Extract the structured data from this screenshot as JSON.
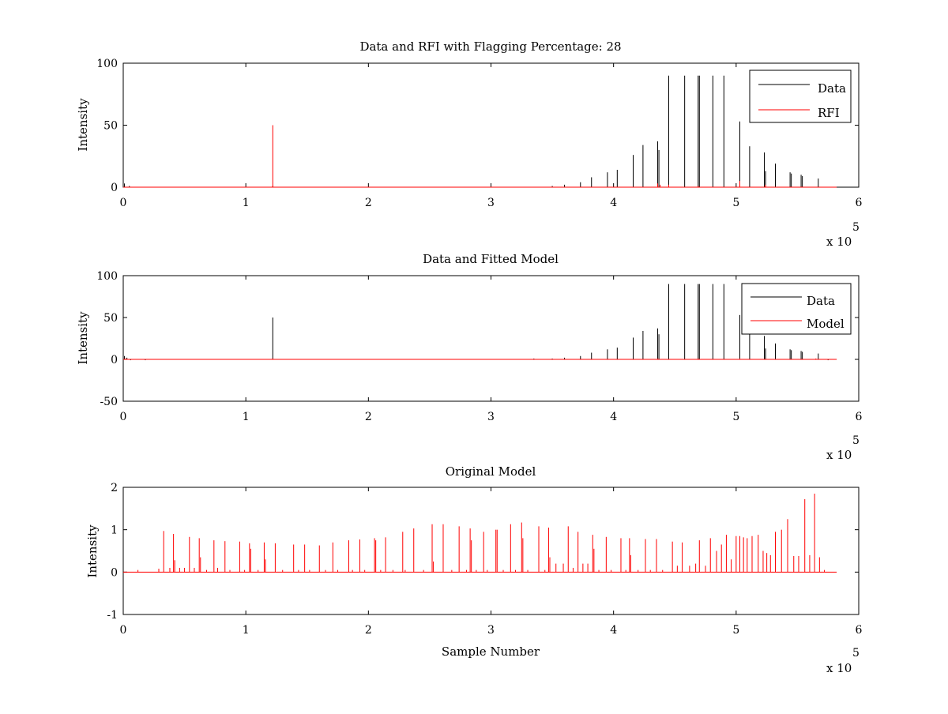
{
  "figure": {
    "background": "#ffffff",
    "colors": {
      "data": "#000000",
      "rfi": "#ff0000",
      "model": "#ff0000",
      "axes": "#000000"
    }
  },
  "chart_data": [
    {
      "type": "line",
      "title": "Data and RFI with Flagging Percentage: 28",
      "xlabel": "",
      "ylabel": "Intensity",
      "xlim": [
        0,
        6
      ],
      "ylim": [
        0,
        100
      ],
      "xticks": [
        "0",
        "1",
        "2",
        "3",
        "4",
        "5",
        "6"
      ],
      "yticks": [
        "0",
        "50",
        "100"
      ],
      "x_multiplier_label": "x 10",
      "x_multiplier_exponent": "5",
      "grid": false,
      "legend_position": "top-right",
      "series": [
        {
          "name": "Data",
          "color": "#000000",
          "baseline": 0,
          "spikes": [
            [
              0.01,
              3
            ],
            [
              0.05,
              1
            ],
            [
              1.22,
              1
            ],
            [
              3.5,
              1
            ],
            [
              3.6,
              2
            ],
            [
              3.73,
              4
            ],
            [
              3.82,
              8
            ],
            [
              3.95,
              12
            ],
            [
              4.03,
              14
            ],
            [
              4.16,
              26
            ],
            [
              4.24,
              34
            ],
            [
              4.36,
              37
            ],
            [
              4.37,
              30
            ],
            [
              4.45,
              90
            ],
            [
              4.58,
              90
            ],
            [
              4.69,
              90
            ],
            [
              4.7,
              90
            ],
            [
              4.81,
              90
            ],
            [
              4.9,
              90
            ],
            [
              5.03,
              53
            ],
            [
              5.11,
              33
            ],
            [
              5.23,
              28
            ],
            [
              5.24,
              13
            ],
            [
              5.32,
              19
            ],
            [
              5.44,
              12
            ],
            [
              5.45,
              11
            ],
            [
              5.53,
              10
            ],
            [
              5.54,
              9
            ],
            [
              5.67,
              7
            ]
          ]
        },
        {
          "name": "RFI",
          "color": "#ff0000",
          "baseline": 0,
          "spikes": [
            [
              1.22,
              50
            ],
            [
              4.36,
              3
            ],
            [
              4.38,
              2
            ],
            [
              4.45,
              2
            ],
            [
              4.69,
              1
            ],
            [
              5.03,
              5
            ],
            [
              5.24,
              2
            ]
          ]
        }
      ]
    },
    {
      "type": "line",
      "title": "Data and Fitted Model",
      "xlabel": "",
      "ylabel": "Intensity",
      "xlim": [
        0,
        6
      ],
      "ylim": [
        -50,
        100
      ],
      "xticks": [
        "0",
        "1",
        "2",
        "3",
        "4",
        "5",
        "6"
      ],
      "yticks": [
        "-50",
        "0",
        "50",
        "100"
      ],
      "x_multiplier_label": "x 10",
      "x_multiplier_exponent": "5",
      "grid": false,
      "legend_position": "top-right",
      "series": [
        {
          "name": "Data",
          "color": "#000000",
          "baseline": 0,
          "spikes": [
            [
              0.01,
              4
            ],
            [
              0.03,
              2
            ],
            [
              0.06,
              -1
            ],
            [
              0.18,
              -1
            ],
            [
              1.22,
              50
            ],
            [
              3.35,
              1
            ],
            [
              3.5,
              1
            ],
            [
              3.6,
              2
            ],
            [
              3.73,
              4
            ],
            [
              3.82,
              8
            ],
            [
              3.95,
              12
            ],
            [
              4.03,
              14
            ],
            [
              4.16,
              26
            ],
            [
              4.24,
              34
            ],
            [
              4.36,
              37
            ],
            [
              4.37,
              30
            ],
            [
              4.45,
              90
            ],
            [
              4.58,
              90
            ],
            [
              4.69,
              90
            ],
            [
              4.7,
              90
            ],
            [
              4.81,
              90
            ],
            [
              4.9,
              90
            ],
            [
              5.03,
              53
            ],
            [
              5.11,
              33
            ],
            [
              5.23,
              28
            ],
            [
              5.24,
              13
            ],
            [
              5.32,
              19
            ],
            [
              5.44,
              12
            ],
            [
              5.45,
              11
            ],
            [
              5.53,
              10
            ],
            [
              5.54,
              9
            ],
            [
              5.67,
              7
            ],
            [
              5.75,
              -1
            ]
          ]
        },
        {
          "name": "Model",
          "color": "#ff0000",
          "baseline": 0,
          "spikes": [
            [
              0.02,
              1
            ],
            [
              1.22,
              1
            ],
            [
              4.36,
              1
            ],
            [
              4.69,
              1
            ],
            [
              5.03,
              1
            ],
            [
              5.65,
              1
            ]
          ]
        }
      ]
    },
    {
      "type": "line",
      "title": "Original Model",
      "xlabel": "Sample Number",
      "ylabel": "Intensity",
      "xlim": [
        0,
        6
      ],
      "ylim": [
        -1,
        2
      ],
      "xticks": [
        "0",
        "1",
        "2",
        "3",
        "4",
        "5",
        "6"
      ],
      "yticks": [
        "-1",
        "0",
        "1",
        "2"
      ],
      "x_multiplier_label": "x 10",
      "x_multiplier_exponent": "5",
      "grid": false,
      "legend_position": "none",
      "series": [
        {
          "color": "#ff0000",
          "baseline": 0,
          "spikes": [
            [
              0.12,
              0.05
            ],
            [
              0.29,
              0.08
            ],
            [
              0.33,
              0.97
            ],
            [
              0.38,
              0.1
            ],
            [
              0.41,
              0.9
            ],
            [
              0.42,
              0.28
            ],
            [
              0.46,
              0.1
            ],
            [
              0.5,
              0.1
            ],
            [
              0.54,
              0.83
            ],
            [
              0.58,
              0.1
            ],
            [
              0.62,
              0.8
            ],
            [
              0.63,
              0.35
            ],
            [
              0.68,
              0.05
            ],
            [
              0.74,
              0.75
            ],
            [
              0.77,
              0.1
            ],
            [
              0.83,
              0.73
            ],
            [
              0.87,
              0.05
            ],
            [
              0.95,
              0.72
            ],
            [
              0.99,
              0.05
            ],
            [
              1.03,
              0.68
            ],
            [
              1.04,
              0.55
            ],
            [
              1.1,
              0.05
            ],
            [
              1.15,
              0.7
            ],
            [
              1.16,
              0.3
            ],
            [
              1.24,
              0.68
            ],
            [
              1.3,
              0.05
            ],
            [
              1.39,
              0.65
            ],
            [
              1.43,
              0.05
            ],
            [
              1.48,
              0.65
            ],
            [
              1.52,
              0.05
            ],
            [
              1.6,
              0.63
            ],
            [
              1.65,
              0.05
            ],
            [
              1.71,
              0.7
            ],
            [
              1.75,
              0.05
            ],
            [
              1.84,
              0.75
            ],
            [
              1.87,
              0.05
            ],
            [
              1.93,
              0.77
            ],
            [
              1.97,
              0.05
            ],
            [
              2.05,
              0.8
            ],
            [
              2.06,
              0.75
            ],
            [
              2.1,
              0.05
            ],
            [
              2.14,
              0.82
            ],
            [
              2.2,
              0.05
            ],
            [
              2.28,
              0.95
            ],
            [
              2.3,
              0.05
            ],
            [
              2.37,
              1.03
            ],
            [
              2.45,
              0.05
            ],
            [
              2.52,
              1.13
            ],
            [
              2.53,
              0.25
            ],
            [
              2.61,
              1.13
            ],
            [
              2.68,
              0.05
            ],
            [
              2.74,
              1.08
            ],
            [
              2.8,
              0.05
            ],
            [
              2.83,
              1.03
            ],
            [
              2.84,
              0.75
            ],
            [
              2.88,
              0.05
            ],
            [
              2.94,
              0.95
            ],
            [
              2.97,
              0.05
            ],
            [
              3.04,
              1.0
            ],
            [
              3.05,
              1.0
            ],
            [
              3.1,
              0.05
            ],
            [
              3.16,
              1.13
            ],
            [
              3.2,
              0.05
            ],
            [
              3.25,
              1.17
            ],
            [
              3.26,
              0.8
            ],
            [
              3.3,
              0.05
            ],
            [
              3.39,
              1.08
            ],
            [
              3.44,
              0.05
            ],
            [
              3.47,
              1.05
            ],
            [
              3.48,
              0.35
            ],
            [
              3.53,
              0.2
            ],
            [
              3.59,
              0.2
            ],
            [
              3.63,
              1.08
            ],
            [
              3.67,
              0.1
            ],
            [
              3.71,
              0.95
            ],
            [
              3.75,
              0.2
            ],
            [
              3.79,
              0.2
            ],
            [
              3.83,
              0.88
            ],
            [
              3.84,
              0.55
            ],
            [
              3.88,
              0.05
            ],
            [
              3.94,
              0.83
            ],
            [
              3.98,
              0.05
            ],
            [
              4.06,
              0.8
            ],
            [
              4.1,
              0.05
            ],
            [
              4.13,
              0.8
            ],
            [
              4.14,
              0.4
            ],
            [
              4.2,
              0.05
            ],
            [
              4.26,
              0.78
            ],
            [
              4.3,
              0.05
            ],
            [
              4.35,
              0.78
            ],
            [
              4.4,
              0.05
            ],
            [
              4.48,
              0.72
            ],
            [
              4.52,
              0.15
            ],
            [
              4.56,
              0.7
            ],
            [
              4.62,
              0.15
            ],
            [
              4.67,
              0.2
            ],
            [
              4.7,
              0.75
            ],
            [
              4.75,
              0.15
            ],
            [
              4.79,
              0.8
            ],
            [
              4.84,
              0.5
            ],
            [
              4.88,
              0.65
            ],
            [
              4.92,
              0.88
            ],
            [
              4.96,
              0.3
            ],
            [
              5.0,
              0.85
            ],
            [
              5.03,
              0.85
            ],
            [
              5.06,
              0.82
            ],
            [
              5.09,
              0.8
            ],
            [
              5.13,
              0.85
            ],
            [
              5.18,
              0.88
            ],
            [
              5.22,
              0.5
            ],
            [
              5.25,
              0.45
            ],
            [
              5.28,
              0.4
            ],
            [
              5.32,
              0.95
            ],
            [
              5.37,
              1.0
            ],
            [
              5.42,
              1.25
            ],
            [
              5.47,
              0.38
            ],
            [
              5.51,
              0.38
            ],
            [
              5.56,
              1.72
            ],
            [
              5.6,
              0.4
            ],
            [
              5.64,
              1.85
            ],
            [
              5.68,
              0.35
            ],
            [
              5.72,
              0.05
            ]
          ]
        }
      ]
    }
  ]
}
